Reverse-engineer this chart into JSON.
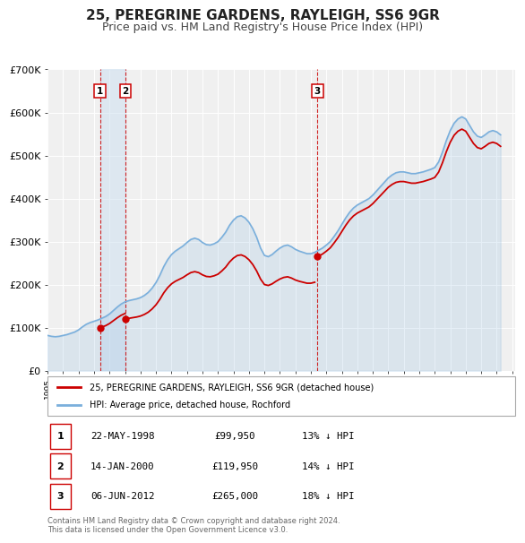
{
  "title": "25, PEREGRINE GARDENS, RAYLEIGH, SS6 9GR",
  "subtitle": "Price paid vs. HM Land Registry's House Price Index (HPI)",
  "ylim": [
    0,
    700000
  ],
  "yticks": [
    0,
    100000,
    200000,
    300000,
    400000,
    500000,
    600000,
    700000
  ],
  "ytick_labels": [
    "£0",
    "£100K",
    "£200K",
    "£300K",
    "£400K",
    "£500K",
    "£600K",
    "£700K"
  ],
  "background_color": "#ffffff",
  "plot_bg_color": "#f0f0f0",
  "grid_color": "#ffffff",
  "title_fontsize": 11,
  "subtitle_fontsize": 9,
  "legend_label_red": "25, PEREGRINE GARDENS, RAYLEIGH, SS6 9GR (detached house)",
  "legend_label_blue": "HPI: Average price, detached house, Rochford",
  "red_color": "#cc0000",
  "blue_color": "#7aafdc",
  "sale_decimal": [
    1998.388,
    2000.038,
    2012.428
  ],
  "sale_prices": [
    99950,
    119950,
    265000
  ],
  "sale_labels": [
    "1",
    "2",
    "3"
  ],
  "vline_color": "#cc0000",
  "shade_color": "#cce0f0",
  "shade_alpha": 0.5,
  "table_rows": [
    {
      "num": "1",
      "date": "22-MAY-1998",
      "price": "£99,950",
      "discount": "13% ↓ HPI"
    },
    {
      "num": "2",
      "date": "14-JAN-2000",
      "price": "£119,950",
      "discount": "14% ↓ HPI"
    },
    {
      "num": "3",
      "date": "06-JUN-2012",
      "price": "£265,000",
      "discount": "18% ↓ HPI"
    }
  ],
  "footer": "Contains HM Land Registry data © Crown copyright and database right 2024.\nThis data is licensed under the Open Government Licence v3.0.",
  "hpi_years": [
    1995.0,
    1995.25,
    1995.5,
    1995.75,
    1996.0,
    1996.25,
    1996.5,
    1996.75,
    1997.0,
    1997.25,
    1997.5,
    1997.75,
    1998.0,
    1998.25,
    1998.5,
    1998.75,
    1999.0,
    1999.25,
    1999.5,
    1999.75,
    2000.0,
    2000.25,
    2000.5,
    2000.75,
    2001.0,
    2001.25,
    2001.5,
    2001.75,
    2002.0,
    2002.25,
    2002.5,
    2002.75,
    2003.0,
    2003.25,
    2003.5,
    2003.75,
    2004.0,
    2004.25,
    2004.5,
    2004.75,
    2005.0,
    2005.25,
    2005.5,
    2005.75,
    2006.0,
    2006.25,
    2006.5,
    2006.75,
    2007.0,
    2007.25,
    2007.5,
    2007.75,
    2008.0,
    2008.25,
    2008.5,
    2008.75,
    2009.0,
    2009.25,
    2009.5,
    2009.75,
    2010.0,
    2010.25,
    2010.5,
    2010.75,
    2011.0,
    2011.25,
    2011.5,
    2011.75,
    2012.0,
    2012.25,
    2012.5,
    2012.75,
    2013.0,
    2013.25,
    2013.5,
    2013.75,
    2014.0,
    2014.25,
    2014.5,
    2014.75,
    2015.0,
    2015.25,
    2015.5,
    2015.75,
    2016.0,
    2016.25,
    2016.5,
    2016.75,
    2017.0,
    2017.25,
    2017.5,
    2017.75,
    2018.0,
    2018.25,
    2018.5,
    2018.75,
    2019.0,
    2019.25,
    2019.5,
    2019.75,
    2020.0,
    2020.25,
    2020.5,
    2020.75,
    2021.0,
    2021.25,
    2021.5,
    2021.75,
    2022.0,
    2022.25,
    2022.5,
    2022.75,
    2023.0,
    2023.25,
    2023.5,
    2023.75,
    2024.0,
    2024.25
  ],
  "hpi_values": [
    82000,
    80000,
    79000,
    80000,
    82000,
    84000,
    87000,
    90000,
    95000,
    102000,
    108000,
    112000,
    115000,
    118000,
    122000,
    126000,
    132000,
    140000,
    148000,
    155000,
    160000,
    163000,
    165000,
    167000,
    170000,
    175000,
    182000,
    192000,
    205000,
    222000,
    242000,
    258000,
    270000,
    278000,
    284000,
    290000,
    298000,
    305000,
    308000,
    305000,
    298000,
    293000,
    292000,
    295000,
    300000,
    310000,
    322000,
    338000,
    350000,
    358000,
    360000,
    355000,
    345000,
    330000,
    310000,
    285000,
    268000,
    265000,
    270000,
    278000,
    285000,
    290000,
    292000,
    288000,
    282000,
    278000,
    275000,
    272000,
    272000,
    275000,
    280000,
    285000,
    292000,
    300000,
    312000,
    325000,
    340000,
    355000,
    368000,
    378000,
    385000,
    390000,
    395000,
    400000,
    408000,
    418000,
    428000,
    438000,
    448000,
    455000,
    460000,
    462000,
    462000,
    460000,
    458000,
    458000,
    460000,
    462000,
    465000,
    468000,
    472000,
    485000,
    508000,
    535000,
    558000,
    575000,
    585000,
    590000,
    585000,
    570000,
    555000,
    545000,
    542000,
    548000,
    555000,
    558000,
    555000,
    548000
  ]
}
